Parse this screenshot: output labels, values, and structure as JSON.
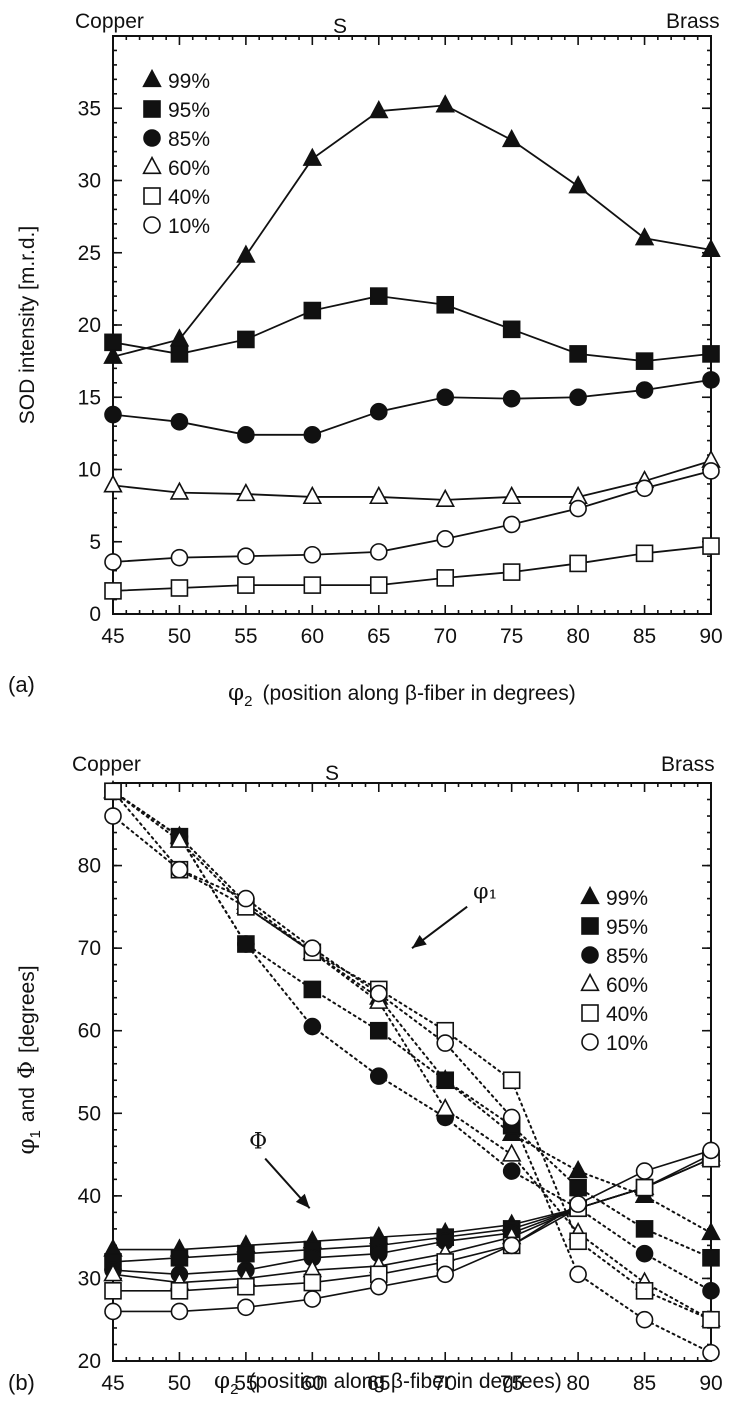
{
  "colors": {
    "ink": "#111111",
    "background": "#ffffff"
  },
  "chart_data": [
    {
      "panel_label": "(a)",
      "type": "line",
      "top_labels": {
        "left": "Copper",
        "center": "S",
        "right": "Brass"
      },
      "ylabel": "SOD intensity [m.r.d.]",
      "xlabel": {
        "symbol": "φ",
        "subscript": "2",
        "text": "(position along β-fiber in degrees)"
      },
      "xlim": [
        45,
        90
      ],
      "ylim": [
        0,
        40
      ],
      "x_ticks": [
        45,
        50,
        55,
        60,
        65,
        70,
        75,
        80,
        85,
        90
      ],
      "y_ticks": [
        0,
        5,
        10,
        15,
        20,
        25,
        30,
        35
      ],
      "legend_position": "top-left",
      "x": [
        45,
        50,
        55,
        60,
        65,
        70,
        75,
        80,
        85,
        90
      ],
      "series": [
        {
          "name": "99%",
          "marker": "triangle",
          "filled": true,
          "values": [
            17.8,
            19.0,
            24.8,
            31.5,
            34.8,
            35.2,
            32.8,
            29.6,
            26.0,
            25.2
          ]
        },
        {
          "name": "95%",
          "marker": "square",
          "filled": true,
          "values": [
            18.8,
            18.0,
            19.0,
            21.0,
            22.0,
            21.4,
            19.7,
            18.0,
            17.5,
            18.0
          ]
        },
        {
          "name": "85%",
          "marker": "circle",
          "filled": true,
          "values": [
            13.8,
            13.3,
            12.4,
            12.4,
            14.0,
            15.0,
            14.9,
            15.0,
            15.5,
            16.2
          ]
        },
        {
          "name": "60%",
          "marker": "triangle",
          "filled": false,
          "values": [
            8.9,
            8.4,
            8.3,
            8.1,
            8.1,
            7.9,
            8.1,
            8.1,
            9.2,
            10.6
          ]
        },
        {
          "name": "40%",
          "marker": "square",
          "filled": false,
          "values": [
            1.6,
            1.8,
            2.0,
            2.0,
            2.0,
            2.5,
            2.9,
            3.5,
            4.2,
            4.7
          ]
        },
        {
          "name": "10%",
          "marker": "circle",
          "filled": false,
          "values": [
            3.6,
            3.9,
            4.0,
            4.1,
            4.3,
            5.2,
            6.2,
            7.3,
            8.7,
            9.9
          ]
        }
      ]
    },
    {
      "panel_label": "(b)",
      "type": "line",
      "top_labels": {
        "left": "Copper",
        "center": "S",
        "right": "Brass"
      },
      "ylabel": {
        "symbol1": "φ",
        "sub1": "1",
        "mid": "and",
        "symbol2": "Φ",
        "rest": "[degrees]"
      },
      "xlabel": {
        "symbol": "φ",
        "subscript": "2",
        "text": "(position along β-fiber in degrees)"
      },
      "xlim": [
        45,
        90
      ],
      "ylim": [
        20,
        90
      ],
      "x_ticks": [
        45,
        50,
        55,
        60,
        65,
        70,
        75,
        80,
        85,
        90
      ],
      "y_ticks": [
        20,
        30,
        40,
        50,
        60,
        70,
        80
      ],
      "legend_position": "top-right",
      "annotations": [
        {
          "text": "φ₁",
          "x": 71.5,
          "y": 75.5,
          "arrow_to": [
            67.5,
            70
          ]
        },
        {
          "text": "Φ",
          "x": 56,
          "y": 45,
          "arrow_to": [
            59.8,
            38.5
          ]
        }
      ],
      "x": [
        45,
        50,
        55,
        60,
        65,
        70,
        75,
        80,
        85,
        90
      ],
      "phi1_style": "dotted",
      "Phi_style": "solid",
      "series": [
        {
          "name": "99%",
          "marker": "triangle",
          "filled": true,
          "phi1_x": [
            45,
            50,
            55,
            60,
            65,
            70,
            75,
            80,
            85,
            90
          ],
          "phi1": [
            89,
            83.5,
            75.5,
            69.5,
            64.0,
            54.0,
            47.5,
            43.0,
            40.0,
            35.5
          ],
          "Phi": [
            33.5,
            33.5,
            34.0,
            34.5,
            35.0,
            35.5,
            36.5,
            38.5,
            41.0,
            44.5
          ]
        },
        {
          "name": "95%",
          "marker": "square",
          "filled": true,
          "phi1_x": [
            45,
            50,
            55,
            60,
            65,
            70,
            75,
            80,
            85,
            90
          ],
          "phi1": [
            89,
            83.5,
            70.5,
            65.0,
            60.0,
            54.0,
            48.5,
            41.0,
            36.0,
            32.5
          ],
          "Phi": [
            32.0,
            32.5,
            33.0,
            33.5,
            34.0,
            35.0,
            36.0,
            38.5,
            41.0,
            44.5
          ]
        },
        {
          "name": "85%",
          "marker": "circle",
          "filled": true,
          "phi1_x": [
            45,
            50,
            55,
            60,
            65,
            70,
            75,
            80,
            85,
            90
          ],
          "phi1": [
            89,
            83.5,
            70.5,
            60.5,
            54.5,
            49.5,
            43.0,
            38.5,
            33.0,
            28.5
          ],
          "Phi": [
            31.0,
            30.5,
            31.0,
            32.5,
            33.0,
            34.5,
            35.5,
            38.5,
            41.0,
            44.5
          ]
        },
        {
          "name": "60%",
          "marker": "triangle",
          "filled": false,
          "phi1_x": [
            45,
            50,
            55,
            60,
            65,
            70,
            75,
            80,
            85,
            90
          ],
          "phi1": [
            89,
            83.0,
            75.0,
            69.5,
            63.5,
            50.5,
            45.0,
            35.5,
            29.5,
            25.0
          ],
          "Phi": [
            30.5,
            29.5,
            30.0,
            31.0,
            31.5,
            33.0,
            35.0,
            38.5,
            41.0,
            45.0
          ]
        },
        {
          "name": "40%",
          "marker": "square",
          "filled": false,
          "phi1_x": [
            45,
            50,
            55,
            60,
            65,
            70,
            75,
            80,
            85,
            90
          ],
          "phi1": [
            89,
            79.5,
            75.0,
            69.5,
            65.0,
            60.0,
            54.0,
            34.5,
            28.5,
            25.0
          ],
          "Phi": [
            28.5,
            28.5,
            29.0,
            29.5,
            30.5,
            32.0,
            34.0,
            38.5,
            41.0,
            44.5
          ]
        },
        {
          "name": "10%",
          "marker": "circle",
          "filled": false,
          "phi1_x": [
            45,
            50,
            55,
            60,
            65,
            70,
            75,
            80,
            85,
            90
          ],
          "phi1": [
            86,
            79.5,
            76.0,
            70.0,
            64.5,
            58.5,
            49.5,
            30.5,
            25.0,
            21.0
          ],
          "Phi": [
            26.0,
            26.0,
            26.5,
            27.5,
            29.0,
            30.5,
            34.0,
            39.0,
            43.0,
            45.5
          ]
        }
      ]
    }
  ]
}
